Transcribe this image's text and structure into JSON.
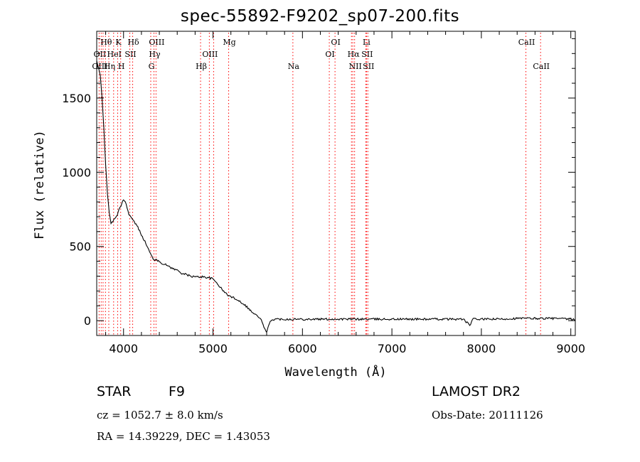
{
  "chart_data": {
    "type": "line",
    "title": "spec-55892-F9202_sp07-200.fits",
    "xlabel": "Wavelength (Å)",
    "ylabel": "Flux (relative)",
    "xlim": [
      3700,
      9050
    ],
    "ylim": [
      -100,
      1950
    ],
    "x_ticks": [
      4000,
      5000,
      6000,
      7000,
      8000,
      9000
    ],
    "y_ticks": [
      0,
      500,
      1000,
      1500
    ],
    "grid": false,
    "series": [
      {
        "x": [
          3700,
          3720,
          3740,
          3760,
          3780,
          3800,
          3820,
          3840,
          3860,
          3880,
          3900,
          3920,
          3940,
          3960,
          3980,
          4000,
          4020,
          4040,
          4060,
          4080,
          4100,
          4150,
          4200,
          4250,
          4300,
          4330,
          4350,
          4400,
          4450,
          4500,
          4550,
          4600,
          4650,
          4700,
          4750,
          4800,
          4850,
          4900,
          4950,
          5000,
          5050,
          5100,
          5150,
          5200,
          5250,
          5300,
          5350,
          5400,
          5450,
          5500,
          5530,
          5560,
          5580,
          5600,
          5620,
          5650,
          5700,
          5800,
          5900,
          6000,
          6200,
          6400,
          6600,
          6800,
          7000,
          7200,
          7400,
          7600,
          7800,
          7850,
          7870,
          7900,
          8000,
          8200,
          8400,
          8600,
          8800,
          9000,
          9050
        ],
        "y": [
          1750,
          1700,
          1650,
          1500,
          1300,
          1050,
          850,
          730,
          660,
          660,
          690,
          700,
          730,
          760,
          790,
          820,
          800,
          760,
          720,
          700,
          680,
          640,
          580,
          520,
          450,
          420,
          410,
          400,
          380,
          370,
          350,
          340,
          320,
          310,
          300,
          295,
          295,
          295,
          290,
          280,
          250,
          210,
          180,
          160,
          150,
          130,
          110,
          80,
          50,
          30,
          10,
          -20,
          -60,
          -80,
          -40,
          5,
          10,
          10,
          10,
          10,
          10,
          10,
          10,
          10,
          10,
          10,
          10,
          10,
          10,
          -20,
          -35,
          10,
          10,
          10,
          15,
          15,
          15,
          10,
          5
        ]
      }
    ],
    "line_markers": [
      {
        "label": "Hθ",
        "x": 3798,
        "row": 1
      },
      {
        "label": "K",
        "x": 3934,
        "row": 1
      },
      {
        "label": "Hδ",
        "x": 4102,
        "row": 1
      },
      {
        "label": "OIII",
        "x": 4363,
        "row": 1
      },
      {
        "label": "Mg",
        "x": 5175,
        "row": 1
      },
      {
        "label": "OI",
        "x": 6364,
        "row": 1
      },
      {
        "label": "Li",
        "x": 6708,
        "row": 1
      },
      {
        "label": "CaII",
        "x": 8498,
        "row": 1
      },
      {
        "label": "OII",
        "x": 3727,
        "row": 2
      },
      {
        "label": "HeI",
        "x": 3889,
        "row": 2
      },
      {
        "label": "SII",
        "x": 4070,
        "row": 2
      },
      {
        "label": "Hγ",
        "x": 4340,
        "row": 2
      },
      {
        "label": "OIII",
        "x": 4959,
        "row": 2
      },
      {
        "label": "OI",
        "x": 6300,
        "row": 2
      },
      {
        "label": "Hα",
        "x": 6563,
        "row": 2
      },
      {
        "label": "SII",
        "x": 6716,
        "row": 2
      },
      {
        "label": "OIII",
        "x": 3727,
        "row": 3
      },
      {
        "label": "Hη",
        "x": 3835,
        "row": 3
      },
      {
        "label": "H",
        "x": 3968,
        "row": 3
      },
      {
        "label": "G",
        "x": 4304,
        "row": 3
      },
      {
        "label": "Hβ",
        "x": 4861,
        "row": 3
      },
      {
        "label": "Na",
        "x": 5893,
        "row": 3
      },
      {
        "label": "NII",
        "x": 6583,
        "row": 3
      },
      {
        "label": "SII",
        "x": 6731,
        "row": 3
      },
      {
        "label": "CaII",
        "x": 8662,
        "row": 3
      }
    ],
    "extra_dotted_lines": [
      3750,
      3771,
      3889,
      4861,
      5007,
      6548
    ],
    "colors": {
      "line": "#000000",
      "marker_line": "#ff0000",
      "axis": "#000000"
    }
  },
  "info": {
    "object_class": "STAR",
    "subclass": "F9",
    "redshift": "cz = 1052.7 ± 8.0 km/s",
    "coords": "RA =  14.39229, DEC =   1.43053",
    "survey": "LAMOST DR2",
    "obs_date": "Obs-Date: 20111126"
  }
}
